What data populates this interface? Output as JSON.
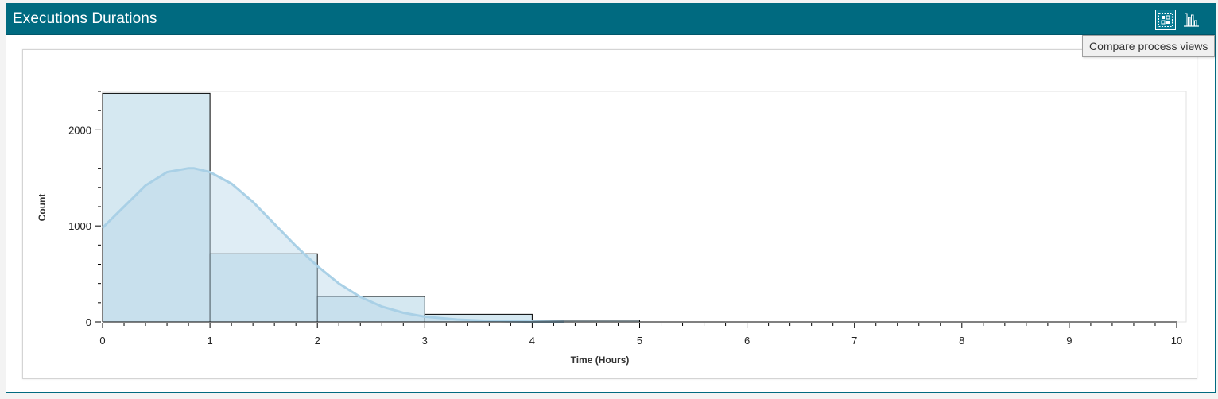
{
  "panel": {
    "title": "Executions Durations",
    "header_color": "#006a80",
    "buttons": [
      {
        "name": "compare-process-views-button",
        "icon": "compare-views-icon"
      },
      {
        "name": "histogram-button",
        "icon": "histogram-icon"
      }
    ]
  },
  "tooltip": {
    "text": "Compare process views"
  },
  "chart_data": {
    "type": "bar",
    "subtype": "histogram-with-density-curve",
    "xlabel": "Time (Hours)",
    "ylabel": "Count",
    "xlim": [
      0,
      10
    ],
    "ylim": [
      0,
      2400
    ],
    "x_ticks": [
      "0",
      "1",
      "2",
      "3",
      "4",
      "5",
      "6",
      "7",
      "8",
      "9",
      "10"
    ],
    "y_ticks": [
      "0",
      "1000",
      "2000"
    ],
    "bins": [
      {
        "x0": 0,
        "x1": 1,
        "count": 2380
      },
      {
        "x0": 1,
        "x1": 2,
        "count": 710
      },
      {
        "x0": 2,
        "x1": 3,
        "count": 265
      },
      {
        "x0": 3,
        "x1": 4,
        "count": 80
      },
      {
        "x0": 4,
        "x1": 5,
        "count": 18
      }
    ],
    "density_curve": {
      "x": [
        0,
        0.2,
        0.4,
        0.6,
        0.8,
        0.85,
        1.0,
        1.2,
        1.4,
        1.6,
        1.8,
        2.0,
        2.2,
        2.4,
        2.6,
        2.8,
        3.0,
        3.3,
        3.6,
        4.0,
        4.3
      ],
      "y": [
        980,
        1200,
        1420,
        1560,
        1600,
        1600,
        1560,
        1440,
        1250,
        1020,
        790,
        580,
        400,
        260,
        160,
        95,
        55,
        25,
        10,
        3,
        0
      ]
    },
    "grid": false,
    "legend": "none",
    "colors": {
      "bar_fill": "#b9d8e8",
      "bar_stroke": "#000000",
      "curve_stroke": "#a9d0e6",
      "curve_fill": "#b9d8e8"
    }
  }
}
